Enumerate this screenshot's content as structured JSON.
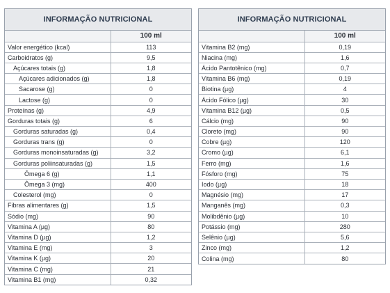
{
  "left": {
    "title": "INFORMAÇÃO NUTRICIONAL",
    "column_header": "100 ml",
    "rows": [
      {
        "name": "Valor energético (kcal)",
        "value": "113",
        "level": 0
      },
      {
        "name": "Carboidratos (g)",
        "value": "9,5",
        "level": 0
      },
      {
        "name": "Açúcares totais (g)",
        "value": "1,8",
        "level": 1
      },
      {
        "name": "Açúcares adicionados (g)",
        "value": "1,8",
        "level": 2
      },
      {
        "name": "Sacarose (g)",
        "value": "0",
        "level": 2
      },
      {
        "name": "Lactose (g)",
        "value": "0",
        "level": 2
      },
      {
        "name": "Proteínas (g)",
        "value": "4,9",
        "level": 0
      },
      {
        "name": "Gorduras totais (g)",
        "value": "6",
        "level": 0
      },
      {
        "name": "Gorduras saturadas (g)",
        "value": "0,4",
        "level": 1
      },
      {
        "name": "Gorduras trans (g)",
        "value": "0",
        "level": 1
      },
      {
        "name": "Gorduras monoinsaturadas (g)",
        "value": "3,2",
        "level": 1
      },
      {
        "name": "Gorduras poliinsaturadas (g)",
        "value": "1,5",
        "level": 1
      },
      {
        "name": "Ômega 6 (g)",
        "value": "1,1",
        "level": 3
      },
      {
        "name": "Ômega 3 (mg)",
        "value": "400",
        "level": 3
      },
      {
        "name": "Colesterol (mg)",
        "value": "0",
        "level": 1
      },
      {
        "name": "Fibras alimentares (g)",
        "value": "1,5",
        "level": 0
      },
      {
        "name": "Sódio (mg)",
        "value": "90",
        "level": 0
      },
      {
        "name": "Vitamina A (µg)",
        "value": "80",
        "level": 0
      },
      {
        "name": "Vitamina D (µg)",
        "value": "1,2",
        "level": 0
      },
      {
        "name": "Vitamina E (mg)",
        "value": "3",
        "level": 0
      },
      {
        "name": "Vitamina K (µg)",
        "value": "20",
        "level": 0
      },
      {
        "name": "Vitamina C (mg)",
        "value": "21",
        "level": 0
      },
      {
        "name": "Vitamina B1 (mg)",
        "value": "0,32",
        "level": 0
      }
    ]
  },
  "right": {
    "title": "INFORMAÇÃO NUTRICIONAL",
    "column_header": "100 ml",
    "rows": [
      {
        "name": "Vitamina B2 (mg)",
        "value": "0,19",
        "level": 0
      },
      {
        "name": "Niacina (mg)",
        "value": "1,6",
        "level": 0
      },
      {
        "name": "Ácido Pantotênico (mg)",
        "value": "0,7",
        "level": 0
      },
      {
        "name": "Vitamina B6 (mg)",
        "value": "0,19",
        "level": 0
      },
      {
        "name": "Biotina (µg)",
        "value": "4",
        "level": 0
      },
      {
        "name": "Ácido Fólico (µg)",
        "value": "30",
        "level": 0
      },
      {
        "name": "Vitamina B12 (µg)",
        "value": "0,5",
        "level": 0
      },
      {
        "name": "Cálcio (mg)",
        "value": "90",
        "level": 0
      },
      {
        "name": "Cloreto (mg)",
        "value": "90",
        "level": 0
      },
      {
        "name": "Cobre (µg)",
        "value": "120",
        "level": 0
      },
      {
        "name": "Cromo (µg)",
        "value": "6,1",
        "level": 0
      },
      {
        "name": "Ferro (mg)",
        "value": "1,6",
        "level": 0
      },
      {
        "name": "Fósforo (mg)",
        "value": "75",
        "level": 0
      },
      {
        "name": "Iodo (µg)",
        "value": "18",
        "level": 0
      },
      {
        "name": "Magnésio (mg)",
        "value": "17",
        "level": 0
      },
      {
        "name": "Manganês (mg)",
        "value": "0,3",
        "level": 0
      },
      {
        "name": "Molibdênio (µg)",
        "value": "10",
        "level": 0
      },
      {
        "name": "Potássio (mg)",
        "value": "280",
        "level": 0
      },
      {
        "name": "Selênio (µg)",
        "value": "5,6",
        "level": 0
      },
      {
        "name": "Zinco (mg)",
        "value": "1,2",
        "level": 0
      },
      {
        "name": "Colina (mg)",
        "value": "80",
        "level": 0
      }
    ]
  }
}
